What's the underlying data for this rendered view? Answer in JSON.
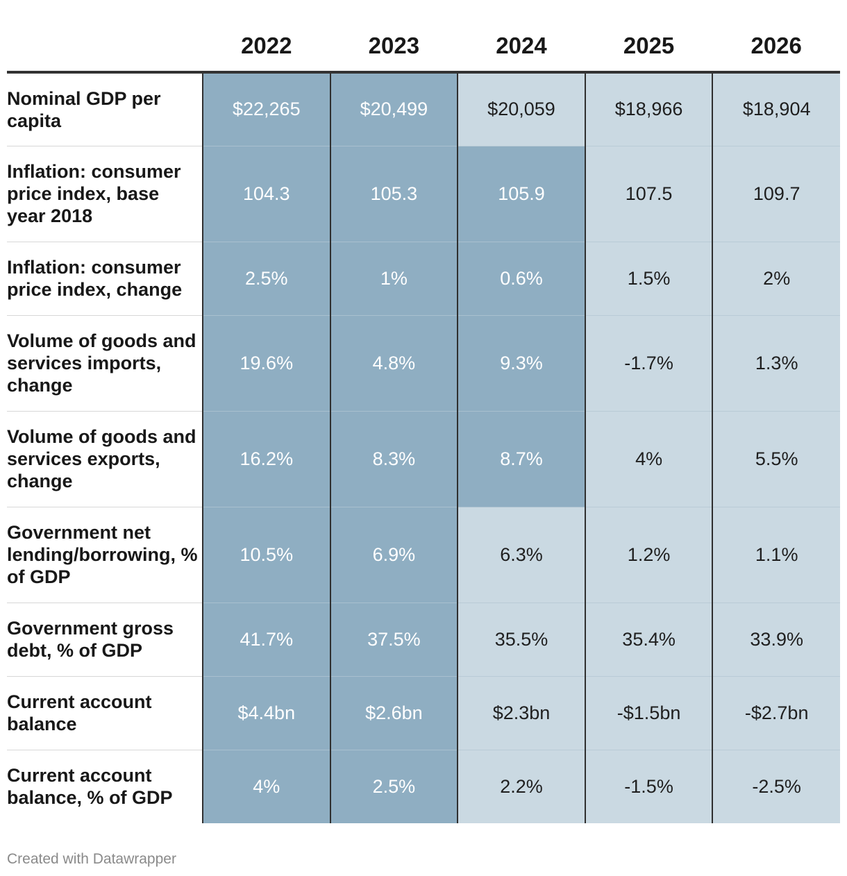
{
  "chart_data": {
    "type": "table",
    "columns": [
      "2022",
      "2023",
      "2024",
      "2025",
      "2026"
    ],
    "rows": [
      {
        "label": "Nominal GDP per capita",
        "values": [
          "$22,265",
          "$20,499",
          "$20,059",
          "$18,966",
          "$18,904"
        ],
        "shades": [
          "dark",
          "dark",
          "light",
          "light",
          "light"
        ]
      },
      {
        "label": "Inflation: consumer price index, base year 2018",
        "values": [
          "104.3",
          "105.3",
          "105.9",
          "107.5",
          "109.7"
        ],
        "shades": [
          "dark",
          "dark",
          "dark",
          "light",
          "light"
        ]
      },
      {
        "label": "Inflation: consumer price index, change",
        "values": [
          "2.5%",
          "1%",
          "0.6%",
          "1.5%",
          "2%"
        ],
        "shades": [
          "dark",
          "dark",
          "dark",
          "light",
          "light"
        ]
      },
      {
        "label": "Volume of goods and services imports, change",
        "values": [
          "19.6%",
          "4.8%",
          "9.3%",
          "-1.7%",
          "1.3%"
        ],
        "shades": [
          "dark",
          "dark",
          "dark",
          "light",
          "light"
        ]
      },
      {
        "label": "Volume of goods and services exports, change",
        "values": [
          "16.2%",
          "8.3%",
          "8.7%",
          "4%",
          "5.5%"
        ],
        "shades": [
          "dark",
          "dark",
          "dark",
          "light",
          "light"
        ]
      },
      {
        "label": "Government net lending/borrowing, % of GDP",
        "values": [
          "10.5%",
          "6.9%",
          "6.3%",
          "1.2%",
          "1.1%"
        ],
        "shades": [
          "dark",
          "dark",
          "light",
          "light",
          "light"
        ]
      },
      {
        "label": "Government gross debt, % of GDP",
        "values": [
          "41.7%",
          "37.5%",
          "35.5%",
          "35.4%",
          "33.9%"
        ],
        "shades": [
          "dark",
          "dark",
          "light",
          "light",
          "light"
        ]
      },
      {
        "label": "Current account balance",
        "values": [
          "$4.4bn",
          "$2.6bn",
          "$2.3bn",
          "-$1.5bn",
          "-$2.7bn"
        ],
        "shades": [
          "dark",
          "dark",
          "light",
          "light",
          "light"
        ]
      },
      {
        "label": "Current account balance, % of GDP",
        "values": [
          "4%",
          "2.5%",
          "2.2%",
          "-1.5%",
          "-2.5%"
        ],
        "shades": [
          "dark",
          "dark",
          "light",
          "light",
          "light"
        ]
      }
    ],
    "colors": {
      "dark": "#8faec2",
      "light": "#cad9e2"
    }
  },
  "footer": "Created with Datawrapper"
}
